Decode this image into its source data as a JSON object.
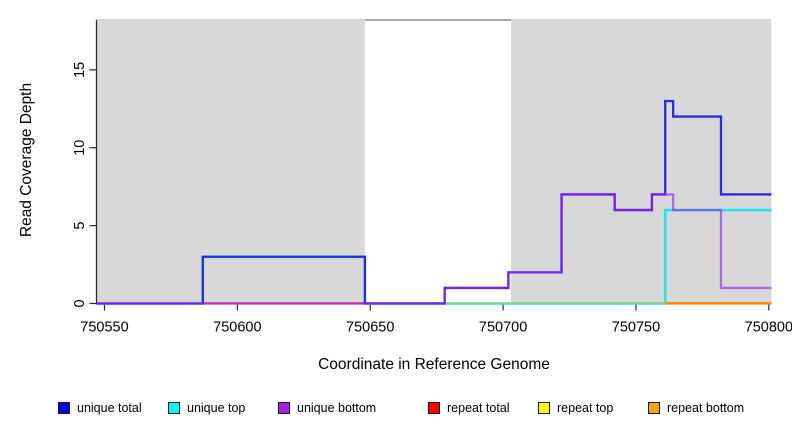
{
  "figure": {
    "xlabel": "Coordinate in Reference Genome",
    "ylabel": "Read Coverage Depth"
  },
  "legend": {
    "items": [
      {
        "label": "unique total",
        "color": "#0000FF"
      },
      {
        "label": "unique top",
        "color": "#00FFFF"
      },
      {
        "label": "unique bottom",
        "color": "#A020F0"
      },
      {
        "label": "repeat total",
        "color": "#FF0000"
      },
      {
        "label": "repeat top",
        "color": "#FFFF00"
      },
      {
        "label": "repeat bottom",
        "color": "#FFA500"
      }
    ]
  },
  "chart_data": {
    "type": "step-line",
    "title": "",
    "xlabel": "Coordinate in Reference Genome",
    "ylabel": "Read Coverage Depth",
    "xlim": [
      750547,
      750801
    ],
    "ylim": [
      0,
      18.2
    ],
    "xticks": [
      750550,
      750600,
      750650,
      750700,
      750750,
      750800
    ],
    "yticks": [
      0,
      5,
      10,
      15
    ],
    "grid": false,
    "legend_position": "bottom",
    "background_bands": [
      {
        "from": 750547,
        "to": 750648,
        "color": "#D8D8D8"
      },
      {
        "from": 750703,
        "to": 750801,
        "color": "#D8D8D8"
      }
    ],
    "series": [
      {
        "name": "unique total",
        "legend_color": "#0000FF",
        "line_color": "#2B2BDE",
        "width": 2.3,
        "opacity": 1,
        "z": 10,
        "steps": [
          [
            750547,
            0
          ],
          [
            750587,
            3
          ],
          [
            750648,
            0
          ],
          [
            750678,
            1
          ],
          [
            750702,
            2
          ],
          [
            750722,
            7
          ],
          [
            750742,
            6
          ],
          [
            750756,
            7
          ],
          [
            750761,
            13
          ],
          [
            750764,
            12
          ],
          [
            750782,
            7
          ],
          [
            750801,
            7
          ]
        ]
      },
      {
        "name": "unique top",
        "legend_color": "#00FFFF",
        "line_color": "#25E3EA",
        "width": 2.6,
        "opacity": 1,
        "z": 4,
        "steps": [
          [
            750547,
            0
          ],
          [
            750587,
            3
          ],
          [
            750648,
            0
          ],
          [
            750761,
            6
          ],
          [
            750801,
            6
          ]
        ]
      },
      {
        "name": "unique bottom",
        "legend_color": "#A020F0",
        "line_color": "#A020F0",
        "width": 2.3,
        "opacity": 0.62,
        "z": 11,
        "steps": [
          [
            750547,
            0
          ],
          [
            750678,
            1
          ],
          [
            750702,
            2
          ],
          [
            750722,
            7
          ],
          [
            750742,
            6
          ],
          [
            750756,
            7
          ],
          [
            750764,
            6
          ],
          [
            750782,
            1
          ],
          [
            750801,
            1
          ]
        ]
      },
      {
        "name": "repeat total",
        "legend_color": "#FF0000",
        "line_color": "#FF0000",
        "width": 1.6,
        "opacity": 1,
        "z": 3,
        "steps": [
          [
            750547,
            0
          ],
          [
            750801,
            0
          ]
        ]
      },
      {
        "name": "repeat top",
        "legend_color": "#FFFF00",
        "line_color": "#FFFF00",
        "width": 1.6,
        "opacity": 1,
        "z": 1,
        "steps": [
          [
            750547,
            0
          ],
          [
            750801,
            0
          ]
        ]
      },
      {
        "name": "repeat bottom",
        "legend_color": "#FFA500",
        "line_color": "#FFA500",
        "width": 1.6,
        "opacity": 1,
        "z": 2,
        "steps": [
          [
            750547,
            0
          ],
          [
            750801,
            0
          ]
        ]
      }
    ],
    "baseline_overlays": [
      {
        "from": 750587,
        "to": 750648,
        "color": "#E04763",
        "width": 1.8
      },
      {
        "from": 750678,
        "to": 750761,
        "color": "#8FCC8F",
        "width": 1.8
      },
      {
        "from": 750761,
        "to": 750801,
        "color": "#FF8C00",
        "width": 2.2
      }
    ]
  }
}
